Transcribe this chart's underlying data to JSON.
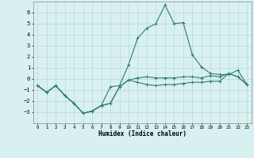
{
  "xlabel": "Humidex (Indice chaleur)",
  "x_values": [
    0,
    1,
    2,
    3,
    4,
    5,
    6,
    7,
    8,
    9,
    10,
    11,
    12,
    13,
    14,
    15,
    16,
    17,
    18,
    19,
    20,
    21,
    22,
    23
  ],
  "line1": [
    -0.6,
    -1.2,
    -0.6,
    -1.5,
    -2.2,
    -3.1,
    -2.9,
    -2.4,
    -2.2,
    -0.7,
    -0.1,
    0.1,
    0.2,
    0.1,
    0.1,
    0.1,
    0.2,
    0.2,
    0.1,
    0.3,
    0.2,
    0.5,
    0.2,
    -0.5
  ],
  "line2": [
    -0.6,
    -1.2,
    -0.6,
    -1.5,
    -2.2,
    -3.1,
    -2.9,
    -2.4,
    -0.7,
    -0.6,
    1.3,
    3.7,
    4.6,
    5.0,
    6.7,
    5.0,
    5.1,
    2.2,
    1.1,
    0.5,
    0.4,
    0.4,
    0.8,
    -0.5
  ],
  "line3": [
    -0.6,
    -1.2,
    -0.6,
    -1.5,
    -2.2,
    -3.1,
    -2.9,
    -2.4,
    -2.2,
    -0.7,
    -0.1,
    -0.3,
    -0.5,
    -0.6,
    -0.5,
    -0.5,
    -0.4,
    -0.3,
    -0.3,
    -0.2,
    -0.2,
    0.5,
    0.2,
    -0.5
  ],
  "ylim": [
    -4,
    7
  ],
  "yticks": [
    -3,
    -2,
    -1,
    0,
    1,
    2,
    3,
    4,
    5,
    6
  ],
  "line_color": "#2e7d6e",
  "bg_color": "#d8f0f0",
  "grid_color": "#b8d8d8",
  "figsize": [
    3.2,
    2.0
  ],
  "dpi": 100
}
